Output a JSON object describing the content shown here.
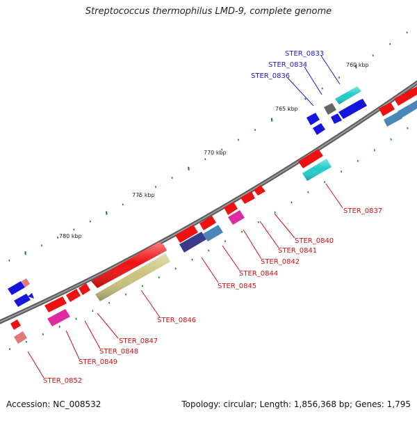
{
  "title": "Streptococcus thermophilus LMD-9, complete genome",
  "footer": {
    "accession": "Accession: NC_008532",
    "summary": "Topology: circular; Length: 1,856,368 bp; Genes: 1,795"
  },
  "scale_labels": [
    "760 kbp",
    "765 kbp",
    "770 kbp",
    "775 kbp",
    "780 kbp"
  ],
  "gene_labels": {
    "blue": [
      "STER_0833",
      "STER_0834",
      "STER_0836"
    ],
    "red": [
      "STER_0837",
      "STER_0840",
      "STER_0841",
      "STER_0842",
      "STER_0844",
      "STER_0845",
      "STER_0846",
      "STER_0847",
      "STER_0848",
      "STER_0849",
      "STER_0852"
    ]
  },
  "colors": {
    "backbone": "#6e6e6e",
    "label_blue": "#1a1acc",
    "label_red": "#cc1111",
    "tick": "#1a7a1a",
    "gene_red": "#ee1111",
    "gene_blue": "#1515dd",
    "gene_cyan": "#22cccc",
    "gene_steel": "#4a86b8",
    "gene_khaki": "#c8c27a",
    "gene_navy": "#3a3a8a",
    "gene_magenta": "#e02aa0",
    "gene_salmon": "#e07a7a",
    "gene_gray": "#666666"
  }
}
